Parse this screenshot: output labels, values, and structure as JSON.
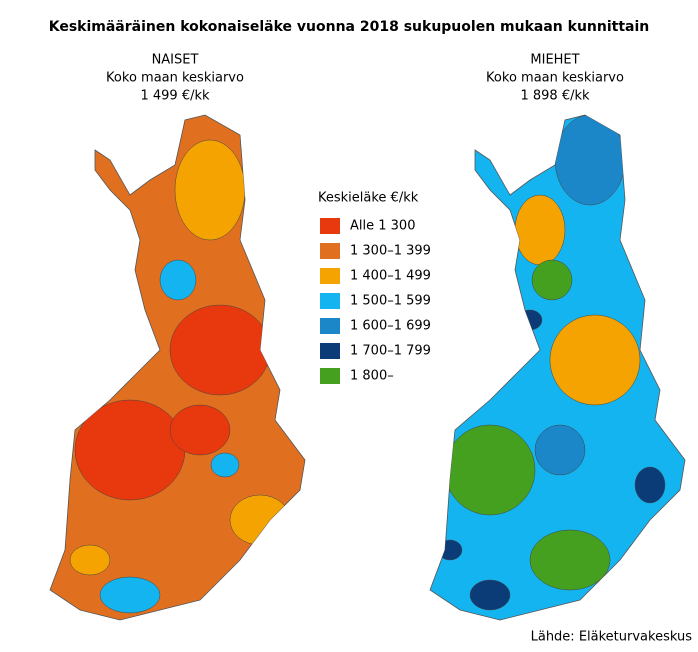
{
  "title": "Keskimääräinen kokonaiseläke vuonna 2018 sukupuolen mukaan kunnittain",
  "maps": [
    {
      "label": "NAISET",
      "subtitle": "Koko maan keskiarvo",
      "average": "1 499 €/kk"
    },
    {
      "label": "MIEHET",
      "subtitle": "Koko maan keskiarvo",
      "average": "1 898 €/kk"
    }
  ],
  "legend": {
    "title": "Keskieläke €/kk",
    "items": [
      {
        "label": "Alle 1 300",
        "color": "#e8380d"
      },
      {
        "label": "1 300–1 399",
        "color": "#e07020"
      },
      {
        "label": "1 400–1 499",
        "color": "#f5a300"
      },
      {
        "label": "1 500–1 599",
        "color": "#14b4f0"
      },
      {
        "label": "1 600–1 699",
        "color": "#1b86c8"
      },
      {
        "label": "1 700–1 799",
        "color": "#0b3c78"
      },
      {
        "label": "1 800–",
        "color": "#45a020"
      }
    ]
  },
  "source": "Lähde: Eläketurvakeskus"
}
